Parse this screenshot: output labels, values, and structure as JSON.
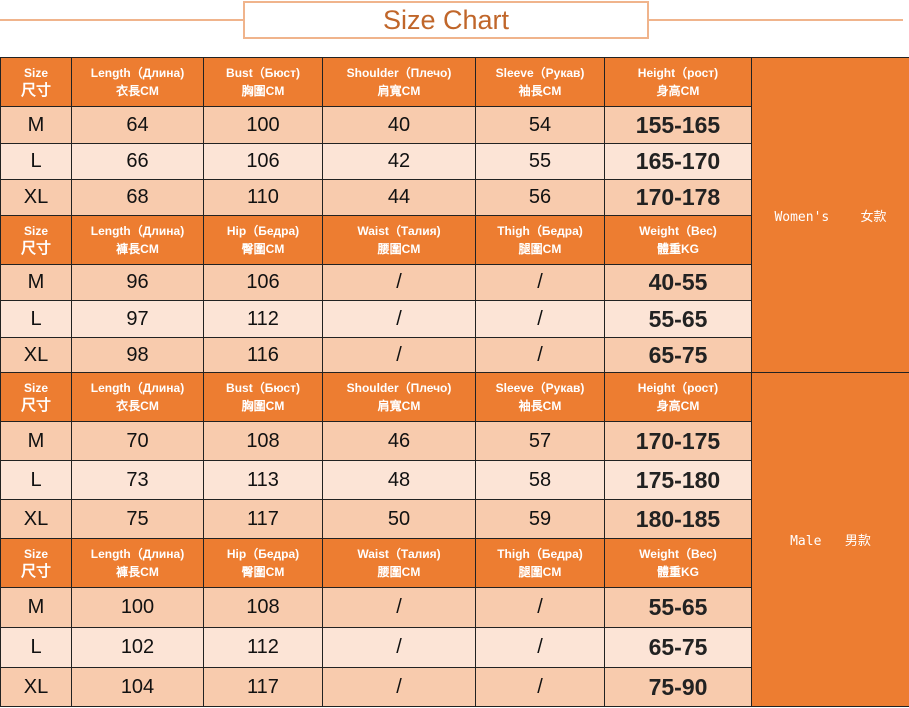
{
  "title": "Size Chart",
  "colors": {
    "header": "#ed7d31",
    "row_dark": "#f8cbad",
    "row_light": "#fce4d6",
    "title": "#c0662a"
  },
  "groups": [
    {
      "label": "Women's    女款",
      "sections": [
        {
          "headers": [
            [
              "Size",
              "尺寸"
            ],
            [
              "Length（Длина)",
              "衣長CM"
            ],
            [
              "Bust（Бюст)",
              "胸圍CM"
            ],
            [
              "Shoulder（Плечо)",
              "肩寬CM"
            ],
            [
              "Sleeve（Рукав)",
              "袖長CM"
            ],
            [
              "Height（рост)",
              "身高CM"
            ]
          ],
          "rows": [
            [
              "M",
              "64",
              "100",
              "40",
              "54",
              "155-165"
            ],
            [
              "L",
              "66",
              "106",
              "42",
              "55",
              "165-170"
            ],
            [
              "XL",
              "68",
              "110",
              "44",
              "56",
              "170-178"
            ]
          ]
        },
        {
          "headers": [
            [
              "Size",
              "尺寸"
            ],
            [
              "Length（Длина)",
              "褲長CM"
            ],
            [
              "Hip（Бедра)",
              "臀圍CM"
            ],
            [
              "Waist（Талия)",
              "腰圍CM"
            ],
            [
              "Thigh（Бедра)",
              "腿圍CM"
            ],
            [
              "Weight（Вес)",
              "體重KG"
            ]
          ],
          "rows": [
            [
              "M",
              "96",
              "106",
              "/",
              "/",
              "40-55"
            ],
            [
              "L",
              "97",
              "112",
              "/",
              "/",
              "55-65"
            ],
            [
              "XL",
              "98",
              "116",
              "/",
              "/",
              "65-75"
            ]
          ]
        }
      ]
    },
    {
      "label": "Male   男款",
      "sections": [
        {
          "headers": [
            [
              "Size",
              "尺寸"
            ],
            [
              "Length（Длина)",
              "衣長CM"
            ],
            [
              "Bust（Бюст)",
              "胸圍CM"
            ],
            [
              "Shoulder（Плечо)",
              "肩寬CM"
            ],
            [
              "Sleeve（Рукав)",
              "袖長CM"
            ],
            [
              "Height（рост)",
              "身高CM"
            ]
          ],
          "rows": [
            [
              "M",
              "70",
              "108",
              "46",
              "57",
              "170-175"
            ],
            [
              "L",
              "73",
              "113",
              "48",
              "58",
              "175-180"
            ],
            [
              "XL",
              "75",
              "117",
              "50",
              "59",
              "180-185"
            ]
          ]
        },
        {
          "headers": [
            [
              "Size",
              "尺寸"
            ],
            [
              "Length（Длина)",
              "褲長CM"
            ],
            [
              "Hip（Бедра)",
              "臀圍CM"
            ],
            [
              "Waist（Талия)",
              "腰圍CM"
            ],
            [
              "Thigh（Бедра)",
              "腿圍CM"
            ],
            [
              "Weight（Вес)",
              "體重KG"
            ]
          ],
          "rows": [
            [
              "M",
              "100",
              "108",
              "/",
              "/",
              "55-65"
            ],
            [
              "L",
              "102",
              "112",
              "/",
              "/",
              "65-75"
            ],
            [
              "XL",
              "104",
              "117",
              "/",
              "/",
              "75-90"
            ]
          ]
        }
      ]
    }
  ]
}
